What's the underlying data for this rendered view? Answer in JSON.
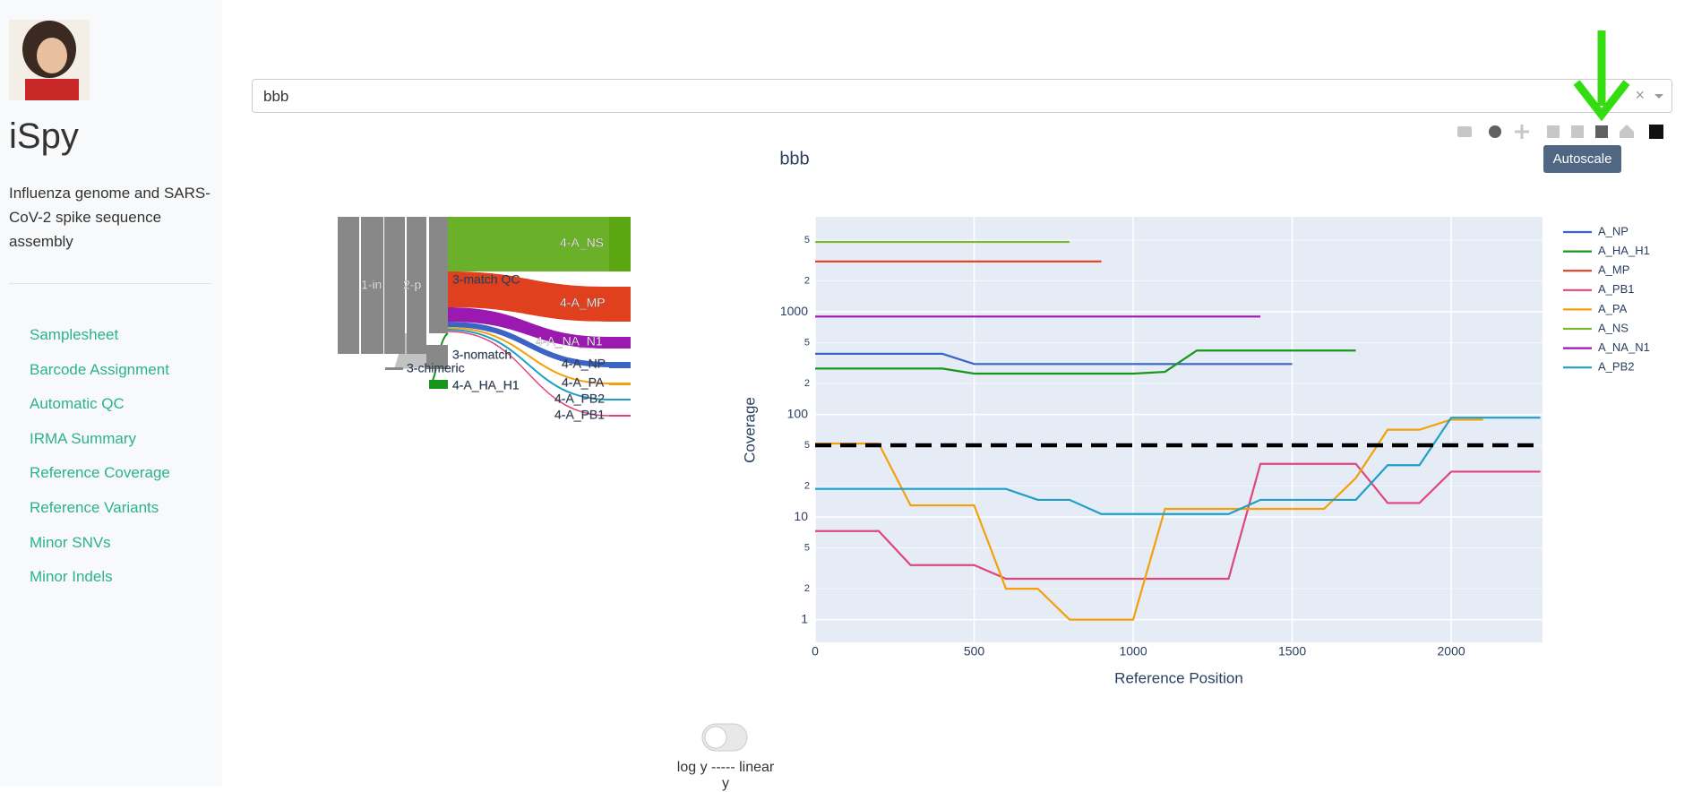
{
  "sidebar": {
    "title": "iSpy",
    "description": "Influenza genome and SARS-CoV-2 spike sequence assembly",
    "nav": [
      "Samplesheet",
      "Barcode Assignment",
      "Automatic QC",
      "IRMA Summary",
      "Reference Coverage",
      "Reference Variants",
      "Minor SNVs",
      "Minor Indels"
    ]
  },
  "dropdown": {
    "value": "bbb",
    "clear": "×"
  },
  "tooltip": "Autoscale",
  "sankey": {
    "nodes": [
      "1-in",
      "2-p",
      "3-match QC",
      "3-nomatch",
      "3-chimeric",
      "4-A_HA_H1",
      "4-A_NS",
      "4-A_MP",
      "4-A_NA_N1",
      "4-A_NP",
      "4-A_PA",
      "4-A_PB2",
      "4-A_PB1"
    ]
  },
  "toggle": {
    "label": "log y ----- linear y"
  },
  "chart_data": {
    "type": "line",
    "title": "bbb",
    "x_label": "Reference Position",
    "y_label": "Coverage",
    "log_y": true,
    "grid": true,
    "threshold": 50,
    "threshold_color": "#000000",
    "x": [
      0,
      100,
      200,
      300,
      400,
      500,
      600,
      700,
      800,
      900,
      1000,
      1100,
      1200,
      1300,
      1400,
      1500,
      1600,
      1700,
      1800,
      1900,
      2000,
      2100,
      2200,
      2280
    ],
    "xlim": [
      0,
      2287
    ],
    "xticks": [
      0,
      500,
      1000,
      1500,
      2000
    ],
    "ylim": [
      0.6,
      8440
    ],
    "yticks": [
      1,
      {
        "value": 2,
        "label": "2"
      },
      {
        "value": 5,
        "label": "5"
      },
      10,
      {
        "value": 20,
        "label": "2"
      },
      {
        "value": 50,
        "label": "5"
      },
      100,
      {
        "value": 200,
        "label": "2"
      },
      {
        "value": 500,
        "label": "5"
      },
      1000,
      {
        "value": 2000,
        "label": "2"
      },
      {
        "value": 5000,
        "label": "5"
      }
    ],
    "series": [
      {
        "name": "A_NP",
        "color": "#3b64c4",
        "values": [
          390,
          390,
          390,
          390,
          390,
          310,
          310,
          310,
          310,
          310,
          310,
          310,
          310,
          310,
          310,
          310,
          null,
          null,
          null,
          null,
          null,
          null,
          null,
          null
        ]
      },
      {
        "name": "A_HA_H1",
        "color": "#16961c",
        "values": [
          280,
          280,
          280,
          280,
          280,
          250,
          250,
          250,
          250,
          250,
          250,
          260,
          420,
          420,
          420,
          420,
          420,
          420,
          null,
          null,
          null,
          null,
          null,
          null
        ]
      },
      {
        "name": "A_MP",
        "color": "#e0401e",
        "values": [
          3100,
          3100,
          3100,
          3100,
          3100,
          3100,
          3100,
          3100,
          3100,
          3100,
          null,
          null,
          null,
          null,
          null,
          null,
          null,
          null,
          null,
          null,
          null,
          null,
          null,
          null
        ]
      },
      {
        "name": "A_PB1",
        "color": "#e0457b",
        "values": [
          7.3,
          7.3,
          7.3,
          3.4,
          3.4,
          3.4,
          2.5,
          2.5,
          2.5,
          2.5,
          2.5,
          2.5,
          2.5,
          2.5,
          33,
          33,
          33,
          33,
          13.7,
          13.7,
          27.7,
          27.7,
          27.7,
          27.7
        ]
      },
      {
        "name": "A_PA",
        "color": "#f5a00a",
        "values": [
          52,
          52,
          52,
          13,
          13,
          13,
          2,
          2,
          1,
          1,
          1,
          12,
          12,
          12,
          12,
          12,
          12,
          24,
          71,
          71,
          89,
          89,
          null,
          null
        ]
      },
      {
        "name": "A_NS",
        "color": "#7cb82b",
        "values": [
          4800,
          4800,
          4800,
          4800,
          4800,
          4800,
          4800,
          4800,
          4800,
          null,
          null,
          null,
          null,
          null,
          null,
          null,
          null,
          null,
          null,
          null,
          null,
          null,
          null,
          null
        ]
      },
      {
        "name": "A_NA_N1",
        "color": "#9b19b0",
        "values": [
          900,
          900,
          900,
          900,
          900,
          900,
          900,
          900,
          900,
          900,
          900,
          900,
          900,
          900,
          900,
          null,
          null,
          null,
          null,
          null,
          null,
          null,
          null,
          null
        ]
      },
      {
        "name": "A_PB2",
        "color": "#1da0c8",
        "values": [
          18.8,
          18.8,
          18.8,
          18.8,
          18.8,
          18.8,
          18.8,
          14.7,
          14.7,
          10.7,
          10.7,
          10.7,
          10.7,
          10.7,
          14.7,
          14.7,
          14.7,
          14.7,
          32,
          32,
          93,
          93,
          93,
          93
        ]
      }
    ]
  }
}
